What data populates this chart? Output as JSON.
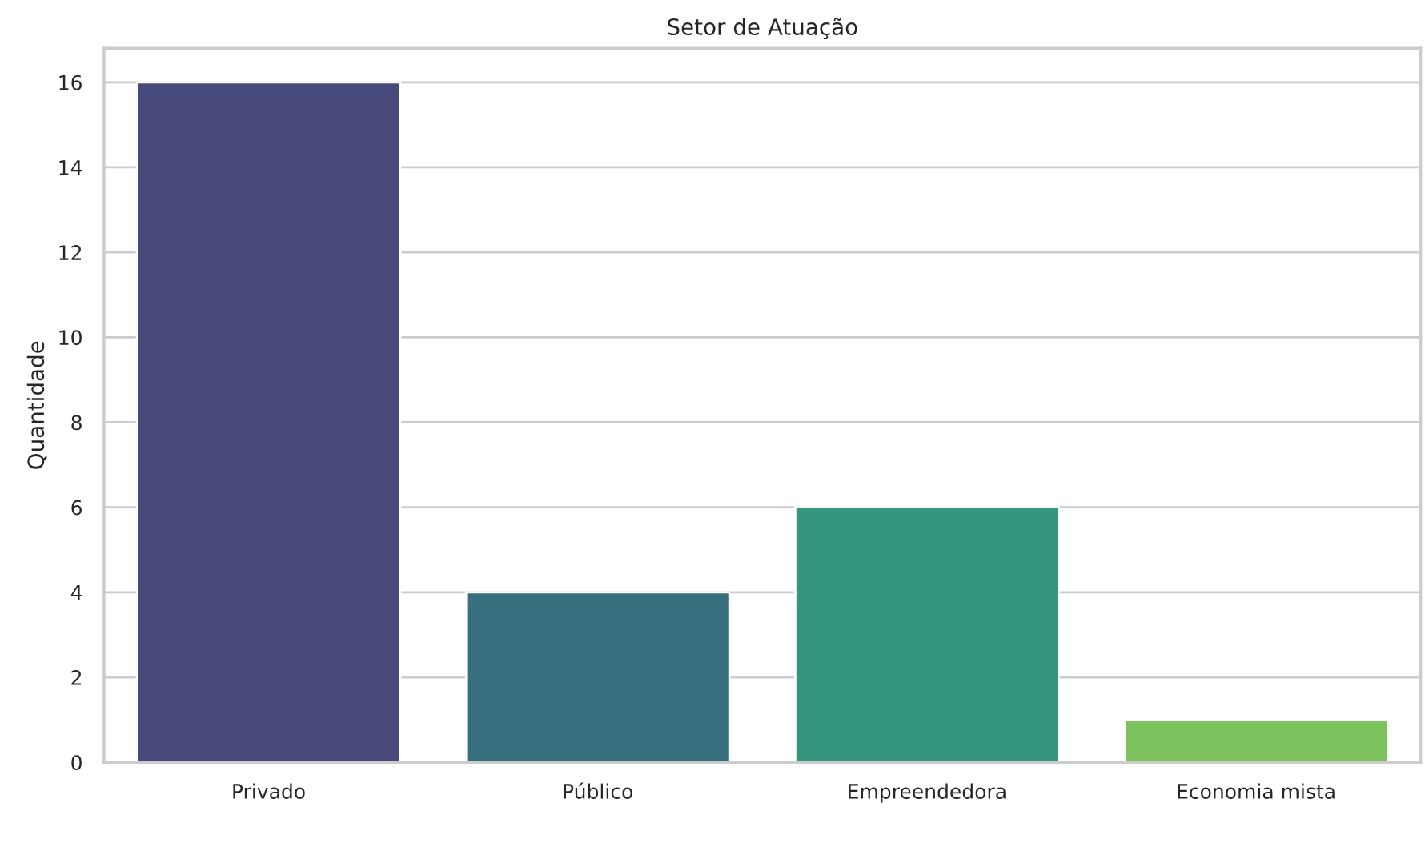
{
  "chart_data": {
    "type": "bar",
    "title": "Setor de Atuação",
    "ylabel": "Quantidade",
    "categories": [
      "Privado",
      "Público",
      "Empreendedora",
      "Economia mista"
    ],
    "values": [
      16,
      4,
      6,
      1
    ],
    "colors": [
      "#484a7b",
      "#36707f",
      "#34977d",
      "#7cc35d"
    ],
    "ylim": [
      0,
      16.8
    ],
    "yticks": [
      0,
      2,
      4,
      6,
      8,
      10,
      12,
      14,
      16
    ],
    "grid": "y"
  }
}
